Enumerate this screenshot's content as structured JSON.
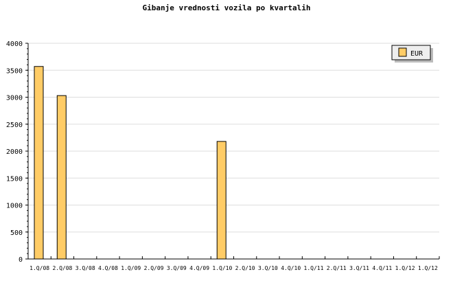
{
  "chart_data": {
    "type": "bar",
    "title": "Gibanje vrednosti vozila po kvartalih",
    "categories": [
      "1.Q/08",
      "2.Q/08",
      "3.Q/08",
      "4.Q/08",
      "1.Q/09",
      "2.Q/09",
      "3.Q/09",
      "4.Q/09",
      "1.Q/10",
      "2.Q/10",
      "3.Q/10",
      "4.Q/10",
      "1.Q/11",
      "2.Q/11",
      "3.Q/11",
      "4.Q/11",
      "1.Q/12",
      "1.Q/12"
    ],
    "series": [
      {
        "name": "EUR",
        "values": [
          3570,
          3030,
          0,
          0,
          0,
          0,
          0,
          0,
          2180,
          0,
          0,
          0,
          0,
          0,
          0,
          0,
          0,
          0
        ]
      }
    ],
    "ylim": [
      0,
      4000
    ],
    "yticks": [
      0,
      500,
      1000,
      1500,
      2000,
      2500,
      3000,
      3500,
      4000
    ],
    "grid": true,
    "legend": "top-right",
    "colors": {
      "bar": "#ffcc66",
      "grid": "#dddddd",
      "legend_bg": "#eeeeee"
    }
  }
}
